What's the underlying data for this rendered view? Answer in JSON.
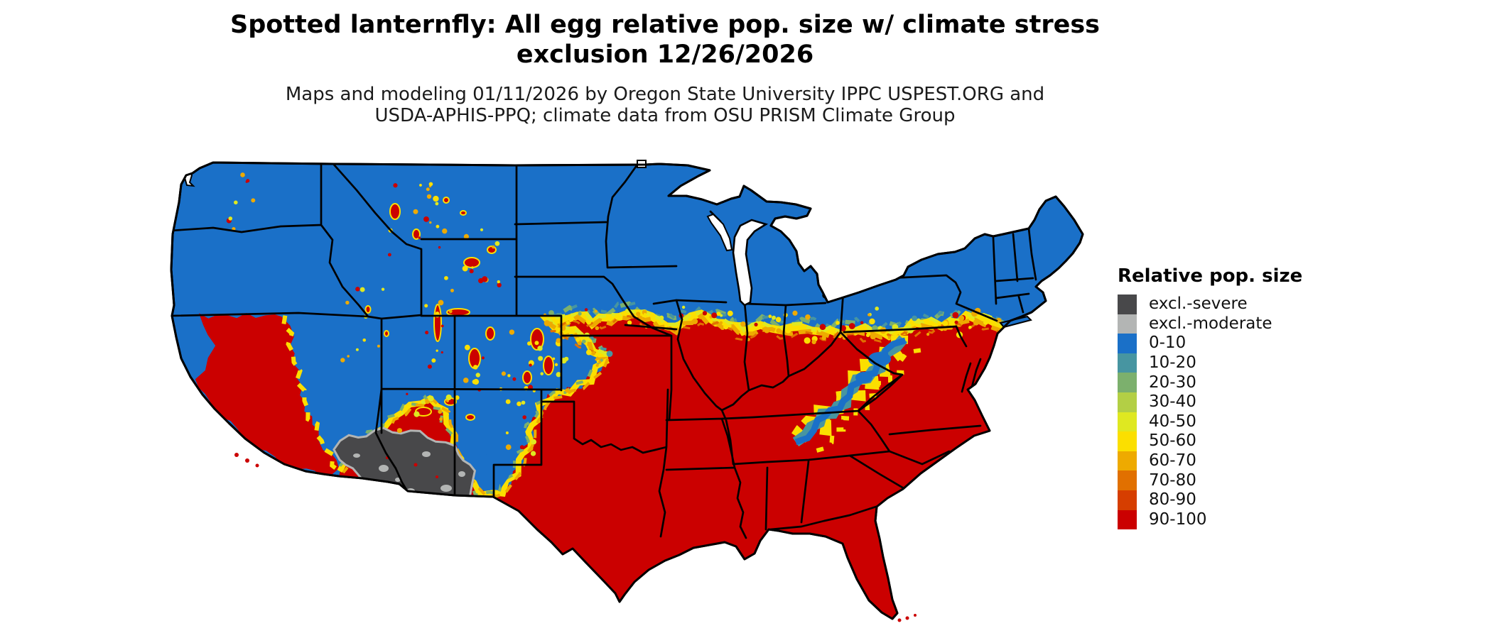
{
  "title": {
    "line1": "Spotted lanternfly: All egg relative pop. size w/ climate stress",
    "line2": "exclusion 12/26/2026"
  },
  "subtitle": {
    "line1": "Maps and modeling 01/11/2026 by Oregon State University IPPC USPEST.ORG and",
    "line2": "USDA-APHIS-PPQ; climate data from OSU PRISM Climate Group"
  },
  "legend": {
    "title": "Relative pop. size",
    "items": [
      {
        "label": "excl.-severe",
        "color": "#48484a"
      },
      {
        "label": "excl.-moderate",
        "color": "#b3b5b4"
      },
      {
        "label": "0-10",
        "color": "#1a70c8"
      },
      {
        "label": "10-20",
        "color": "#4795a1"
      },
      {
        "label": "20-30",
        "color": "#7cb06d"
      },
      {
        "label": "30-40",
        "color": "#b3cf45"
      },
      {
        "label": "40-50",
        "color": "#dfe821"
      },
      {
        "label": "50-60",
        "color": "#fbdf00"
      },
      {
        "label": "60-70",
        "color": "#eeaa00"
      },
      {
        "label": "70-80",
        "color": "#e17000"
      },
      {
        "label": "80-90",
        "color": "#d63e00"
      },
      {
        "label": "90-100",
        "color": "#cb0000"
      }
    ]
  },
  "map": {
    "background_color": "#ffffff",
    "state_border_color": "#000000",
    "water_color": "#ffffff"
  }
}
